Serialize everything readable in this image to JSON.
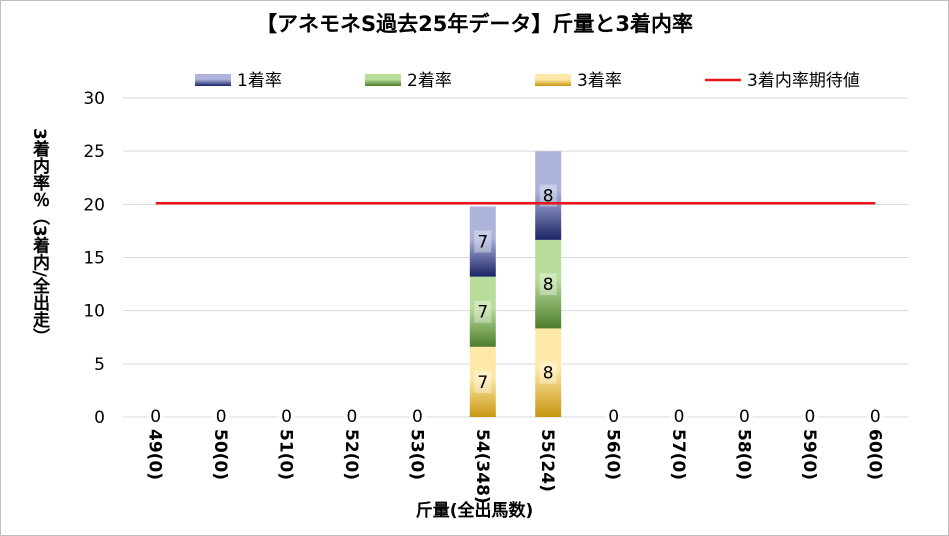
{
  "chart_data": {
    "type": "bar",
    "stacked": true,
    "title": "【アネモネS過去25年データ】斤量と3着内率",
    "xlabel": "斤量(全出馬数)",
    "ylabel": "3着内率％（3着内/全出走）",
    "ylim": [
      0,
      30
    ],
    "yticks": [
      0,
      5,
      10,
      15,
      20,
      25,
      30
    ],
    "grid": true,
    "legend_position": "top",
    "categories": [
      "49(0)",
      "50(0)",
      "51(0)",
      "52(0)",
      "53(0)",
      "54(348)",
      "55(24)",
      "56(0)",
      "57(0)",
      "58(0)",
      "59(0)",
      "60(0)"
    ],
    "series": [
      {
        "name": "3着率",
        "values": [
          0,
          0,
          0,
          0,
          0,
          6.6,
          8.33,
          0,
          0,
          0,
          0,
          0
        ],
        "labels": [
          "0",
          "0",
          "0",
          "0",
          "0",
          "7",
          "8",
          "0",
          "0",
          "0",
          "0",
          "0"
        ],
        "color_dark": "#c8960f",
        "color_light": "#ffe9a8"
      },
      {
        "name": "2着率",
        "values": [
          0,
          0,
          0,
          0,
          0,
          6.6,
          8.33,
          0,
          0,
          0,
          0,
          0
        ],
        "labels": [
          "",
          "",
          "",
          "",
          "",
          "7",
          "8",
          "",
          "",
          "",
          "",
          ""
        ],
        "color_dark": "#4e7d2c",
        "color_light": "#b8dc9a"
      },
      {
        "name": "1着率",
        "values": [
          0,
          0,
          0,
          0,
          0,
          6.6,
          8.33,
          0,
          0,
          0,
          0,
          0
        ],
        "labels": [
          "",
          "",
          "",
          "",
          "",
          "7",
          "8",
          "",
          "",
          "",
          "",
          ""
        ],
        "color_dark": "#1a2466",
        "color_light": "#aeb3dc"
      }
    ],
    "reference_line": {
      "name": "3着内率期待値",
      "value": 20.1,
      "color": "#e8161b"
    }
  }
}
